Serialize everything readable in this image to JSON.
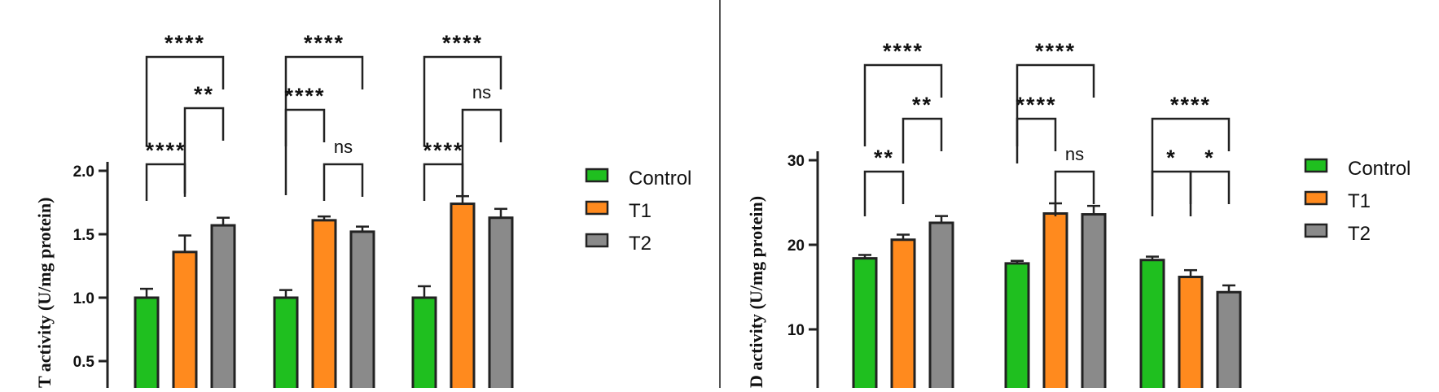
{
  "colors": {
    "Control": "#1fbf1f",
    "T1": "#ff8a1e",
    "T2": "#8a8a8a",
    "axis": "#222222",
    "divider": "#555555"
  },
  "chart_data": [
    {
      "type": "bar",
      "ylabel": "T activity (U/mg protein)",
      "ylim": [
        0,
        2.0
      ],
      "yticks": [
        "0.5",
        "1.0",
        "1.5",
        "2.0"
      ],
      "yticks_values": [
        0.5,
        1.0,
        1.5,
        2.0
      ],
      "categories": [
        "",
        "",
        ""
      ],
      "series": [
        {
          "name": "Control",
          "values": [
            1.0,
            1.0,
            1.0
          ],
          "errors": [
            0.07,
            0.06,
            0.09
          ]
        },
        {
          "name": "T1",
          "values": [
            1.36,
            1.61,
            1.74
          ],
          "errors": [
            0.13,
            0.03,
            0.06
          ]
        },
        {
          "name": "T2",
          "values": [
            1.57,
            1.52,
            1.63
          ],
          "errors": [
            0.06,
            0.04,
            0.07
          ]
        }
      ],
      "legend": [
        "Control",
        "T1",
        "T2"
      ],
      "legend_position": "right",
      "significance": [
        {
          "group": 0,
          "pair": [
            "Control",
            "T2"
          ],
          "label": "****"
        },
        {
          "group": 0,
          "pair": [
            "T1",
            "T2"
          ],
          "label": "**"
        },
        {
          "group": 0,
          "pair": [
            "Control",
            "T1"
          ],
          "label": "****"
        },
        {
          "group": 1,
          "pair": [
            "Control",
            "T2"
          ],
          "label": "****"
        },
        {
          "group": 1,
          "pair": [
            "Control",
            "T1"
          ],
          "label": "****"
        },
        {
          "group": 1,
          "pair": [
            "T1",
            "T2"
          ],
          "label": "ns"
        },
        {
          "group": 2,
          "pair": [
            "Control",
            "T2"
          ],
          "label": "****"
        },
        {
          "group": 2,
          "pair": [
            "T1",
            "T2"
          ],
          "label": "ns"
        },
        {
          "group": 2,
          "pair": [
            "Control",
            "T1"
          ],
          "label": "****"
        }
      ]
    },
    {
      "type": "bar",
      "ylabel": "D activity (U/mg protein)",
      "ylim": [
        0,
        30
      ],
      "yticks": [
        "10",
        "20",
        "30"
      ],
      "yticks_values": [
        10,
        20,
        30
      ],
      "categories": [
        "",
        "",
        ""
      ],
      "series": [
        {
          "name": "Control",
          "values": [
            18.4,
            17.8,
            18.2
          ],
          "errors": [
            0.4,
            0.3,
            0.4
          ]
        },
        {
          "name": "T1",
          "values": [
            20.6,
            23.7,
            16.2
          ],
          "errors": [
            0.6,
            1.2,
            0.8
          ]
        },
        {
          "name": "T2",
          "values": [
            22.6,
            23.6,
            14.4
          ],
          "errors": [
            0.8,
            1.0,
            0.8
          ]
        }
      ],
      "legend": [
        "Control",
        "T1",
        "T2"
      ],
      "legend_position": "right",
      "significance": [
        {
          "group": 0,
          "pair": [
            "Control",
            "T2"
          ],
          "label": "****"
        },
        {
          "group": 0,
          "pair": [
            "T1",
            "T2"
          ],
          "label": "**"
        },
        {
          "group": 0,
          "pair": [
            "Control",
            "T1"
          ],
          "label": "**"
        },
        {
          "group": 1,
          "pair": [
            "Control",
            "T2"
          ],
          "label": "****"
        },
        {
          "group": 1,
          "pair": [
            "Control",
            "T1"
          ],
          "label": "****"
        },
        {
          "group": 1,
          "pair": [
            "T1",
            "T2"
          ],
          "label": "ns"
        },
        {
          "group": 2,
          "pair": [
            "Control",
            "T2"
          ],
          "label": "****"
        },
        {
          "group": 2,
          "pair": [
            "Control",
            "T1"
          ],
          "label": "*"
        },
        {
          "group": 2,
          "pair": [
            "T1",
            "T2"
          ],
          "label": "*"
        }
      ]
    }
  ]
}
